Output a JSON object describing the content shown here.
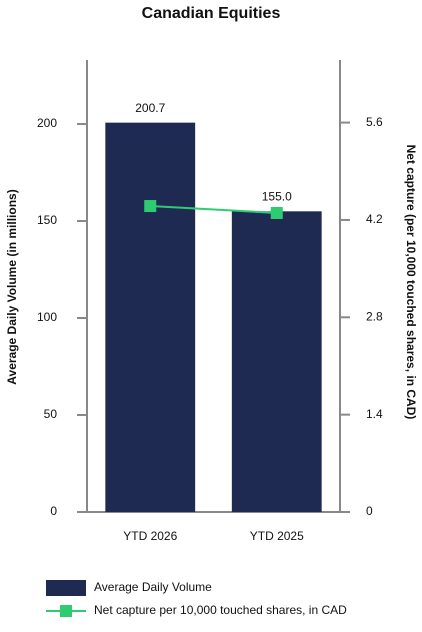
{
  "chart_data": {
    "type": "bar-line",
    "title": "Canadian Equities",
    "categories": [
      "YTD 2026",
      "YTD 2025"
    ],
    "y_label": "Average Daily Volume (in millions)",
    "y2_label": "Net capture (per 10,000 touched shares, in CAD)",
    "series": [
      {
        "name": "Average Daily Volume",
        "type": "bar",
        "color": "#1f2a52",
        "values": [
          200.7,
          155.0
        ],
        "value_labels": [
          "200.7",
          "155.0"
        ]
      },
      {
        "name": "Net capture per 10,000 touched shares, in CAD",
        "type": "line",
        "color": "#2ecc71",
        "axis": "y2",
        "values": [
          4.4,
          4.3
        ]
      }
    ],
    "ylim": [
      0,
      233
    ],
    "yticks": [
      0,
      50,
      100,
      150,
      200
    ],
    "y2lim": [
      0,
      6.5
    ],
    "y2ticks": [
      0,
      1.4,
      2.8,
      4.2,
      5.6
    ]
  }
}
